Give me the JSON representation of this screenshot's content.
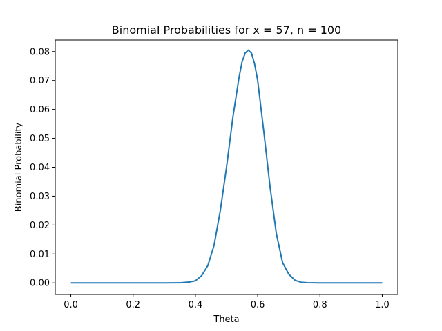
{
  "chart_data": {
    "type": "line",
    "title": "Binomial Probabilities for x = 57, n = 100",
    "xlabel": "Theta",
    "ylabel": "Binomial Probability",
    "xlim": [
      -0.05,
      1.05
    ],
    "ylim": [
      -0.004,
      0.084
    ],
    "x_ticks": [
      0.0,
      0.2,
      0.4,
      0.6,
      0.8,
      1.0
    ],
    "x_tick_labels": [
      "0.0",
      "0.2",
      "0.4",
      "0.6",
      "0.8",
      "1.0"
    ],
    "y_ticks": [
      0.0,
      0.01,
      0.02,
      0.03,
      0.04,
      0.05,
      0.06,
      0.07,
      0.08
    ],
    "y_tick_labels": [
      "0.00",
      "0.01",
      "0.02",
      "0.03",
      "0.04",
      "0.05",
      "0.06",
      "0.07",
      "0.08"
    ],
    "grid": false,
    "line_color": "#1f77b4",
    "series": [
      {
        "x": [
          0.0,
          0.3,
          0.35,
          0.38,
          0.4,
          0.42,
          0.44,
          0.46,
          0.48,
          0.5,
          0.52,
          0.54,
          0.55,
          0.56,
          0.57,
          0.58,
          0.59,
          0.6,
          0.62,
          0.64,
          0.66,
          0.68,
          0.7,
          0.72,
          0.74,
          0.76,
          0.8,
          1.0
        ],
        "y": [
          0.0,
          0.0,
          3e-05,
          0.0003,
          0.0007,
          0.0025,
          0.006,
          0.013,
          0.025,
          0.04,
          0.057,
          0.071,
          0.0765,
          0.0795,
          0.0805,
          0.0795,
          0.0758,
          0.07,
          0.052,
          0.033,
          0.017,
          0.007,
          0.003,
          0.0009,
          0.0002,
          5e-05,
          0.0,
          0.0
        ]
      }
    ]
  }
}
